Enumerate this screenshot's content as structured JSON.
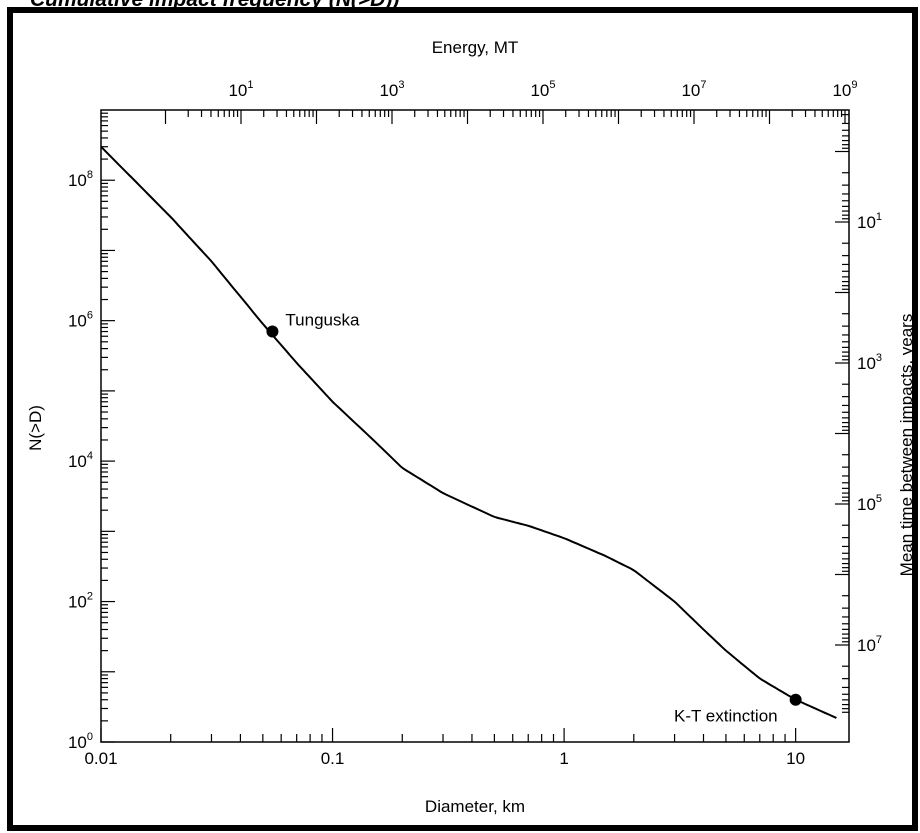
{
  "header_fragment": "Cumulative impact frequency (N(>D))",
  "chart_data": {
    "type": "line",
    "x_scale": "log",
    "y_scale": "log",
    "xlabel": "Diameter, km",
    "ylabel": "N(>D)",
    "top_xlabel": "Energy, MT",
    "right_ylabel": "Mean time between impacts, years",
    "xlim": [
      0.01,
      17
    ],
    "ylim": [
      1,
      1000000000
    ],
    "x_ticks": [
      {
        "v": 0.01,
        "t": "0.01"
      },
      {
        "v": 0.1,
        "t": "0.1"
      },
      {
        "v": 1,
        "t": "1"
      },
      {
        "v": 10,
        "t": "10"
      }
    ],
    "y_ticks": [
      {
        "v": 1,
        "m": "10",
        "e": "0"
      },
      {
        "v": 100,
        "m": "10",
        "e": "2"
      },
      {
        "v": 10000,
        "m": "10",
        "e": "4"
      },
      {
        "v": 1000000,
        "m": "10",
        "e": "6"
      },
      {
        "v": 100000000,
        "m": "10",
        "e": "8"
      }
    ],
    "top_ticks": [
      {
        "v": 10,
        "m": "10",
        "e": "1"
      },
      {
        "v": 1000,
        "m": "10",
        "e": "3"
      },
      {
        "v": 100000,
        "m": "10",
        "e": "5"
      },
      {
        "v": 10000000,
        "m": "10",
        "e": "7"
      },
      {
        "v": 1000000000,
        "m": "10",
        "e": "9"
      }
    ],
    "right_ticks": [
      {
        "v": 10,
        "m": "10",
        "e": "1"
      },
      {
        "v": 1000,
        "m": "10",
        "e": "3"
      },
      {
        "v": 100000,
        "m": "10",
        "e": "5"
      },
      {
        "v": 10000000,
        "m": "10",
        "e": "7"
      }
    ],
    "series": [
      {
        "x": [
          0.01,
          0.02,
          0.03,
          0.05,
          0.07,
          0.1,
          0.15,
          0.2,
          0.3,
          0.5,
          0.7,
          1.0,
          1.5,
          2.0,
          3.0,
          4.0,
          5.0,
          7.0,
          10.0,
          15.0
        ],
        "y": [
          300000000,
          30000000,
          7000000,
          900000,
          250000,
          70000,
          20000,
          8000,
          3500,
          1600,
          1200,
          800,
          450,
          280,
          100,
          40,
          20,
          8,
          4,
          2.2
        ]
      }
    ],
    "annotations": [
      {
        "label": "Tunguska",
        "x": 0.055,
        "y": 700000
      },
      {
        "label": "K-T extinction",
        "x": 10,
        "y": 4
      }
    ]
  }
}
